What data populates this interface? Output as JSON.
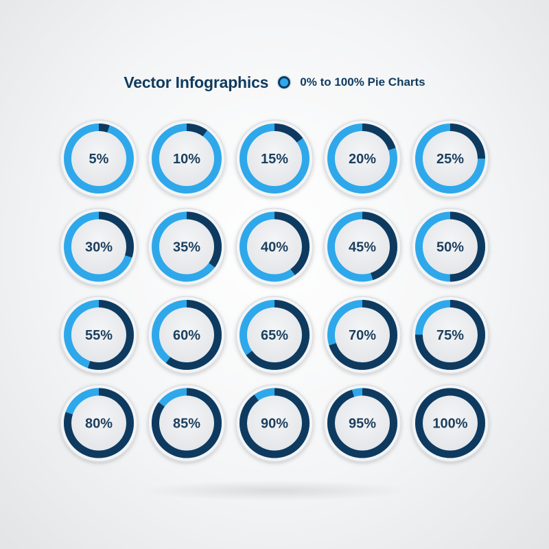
{
  "header": {
    "title": "Vector Infographics",
    "subtitle": "0% to 100% Pie Charts"
  },
  "colors": {
    "light_blue": "#2ea8ea",
    "dark_blue": "#0f3a5f",
    "label": "#1c3f5e",
    "disc": "#ebedf0"
  },
  "chart_data": {
    "type": "pie",
    "title": "",
    "labels": [
      "5%",
      "10%",
      "15%",
      "20%",
      "25%",
      "30%",
      "35%",
      "40%",
      "45%",
      "50%",
      "55%",
      "60%",
      "65%",
      "70%",
      "75%",
      "80%",
      "85%",
      "90%",
      "95%",
      "100%"
    ],
    "values": [
      5,
      10,
      15,
      20,
      25,
      30,
      35,
      40,
      45,
      50,
      55,
      60,
      65,
      70,
      75,
      80,
      85,
      90,
      95,
      100
    ],
    "max": 100
  }
}
